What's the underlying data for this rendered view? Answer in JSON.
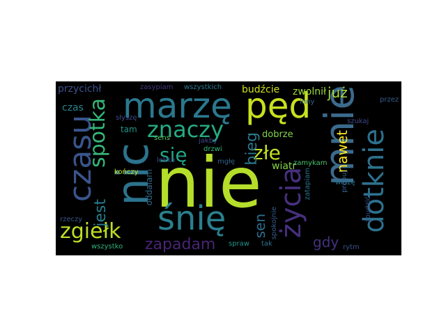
{
  "words": [
    {
      "key": "nie",
      "text": "nie",
      "color": "#b5de2b"
    },
    {
      "key": "mnie",
      "text": "mnie",
      "color": "#3b6a8c"
    },
    {
      "key": "nic",
      "text": "nic",
      "color": "#2c738e"
    },
    {
      "key": "marze",
      "text": "marzę",
      "color": "#2a788e"
    },
    {
      "key": "ped",
      "text": "pęd",
      "color": "#c8e020"
    },
    {
      "key": "snie",
      "text": "śnię",
      "color": "#2a7f8e"
    },
    {
      "key": "czasu",
      "text": "czasu",
      "color": "#3a548c"
    },
    {
      "key": "dotknie",
      "text": "dotknie",
      "color": "#2d718e"
    },
    {
      "key": "zycia",
      "text": "życia",
      "color": "#46307e"
    },
    {
      "key": "znaczy",
      "text": "znaczy",
      "color": "#25ab82"
    },
    {
      "key": "zgielk",
      "text": "zgiełk",
      "color": "#bddf26"
    },
    {
      "key": "spotka",
      "text": "spotka",
      "color": "#35b779"
    },
    {
      "key": "zapadam",
      "text": "zapadam",
      "color": "#482475"
    },
    {
      "key": "jest",
      "text": "jest",
      "color": "#287d8e"
    },
    {
      "key": "sie",
      "text": "się",
      "color": "#21a585"
    },
    {
      "key": "zle",
      "text": "złe",
      "color": "#c2df23"
    },
    {
      "key": "bieg",
      "text": "bieg",
      "color": "#2a788e"
    },
    {
      "key": "sen",
      "text": "sen",
      "color": "#2e6e8e"
    },
    {
      "key": "nawet",
      "text": "nawet",
      "color": "#fde725"
    },
    {
      "key": "juz",
      "text": "już",
      "color": "#a8db34"
    },
    {
      "key": "gdy",
      "text": "gdy",
      "color": "#46307e"
    },
    {
      "key": "przycichl",
      "text": "przycichł",
      "color": "#3b528b"
    },
    {
      "key": "budzcie",
      "text": "budźcie",
      "color": "#d0e11c"
    },
    {
      "key": "zwolnil",
      "text": "zwolnił",
      "color": "#9dd93b"
    },
    {
      "key": "czas",
      "text": "czas",
      "color": "#25848e"
    },
    {
      "key": "dobrze",
      "text": "dobrze",
      "color": "#84d44b"
    },
    {
      "key": "wiatr",
      "text": "wiatr",
      "color": "#86d549"
    },
    {
      "key": "tam",
      "text": "tam",
      "color": "#1f958b"
    },
    {
      "key": "oddalam",
      "text": "oddalam",
      "color": "#2e6e8e"
    },
    {
      "key": "zasypiam",
      "text": "zasypiam",
      "color": "#453781"
    },
    {
      "key": "wszystkich",
      "text": "wszystkich",
      "color": "#2a788e"
    },
    {
      "key": "przez",
      "text": "przez",
      "color": "#355f8d"
    },
    {
      "key": "slysze",
      "text": "słyszę",
      "color": "#3e4a89"
    },
    {
      "key": "szukaj",
      "text": "szukaj",
      "color": "#3e4989"
    },
    {
      "key": "sens",
      "text": "sens",
      "color": "#58c765"
    },
    {
      "key": "jakby",
      "text": "jakby",
      "color": "#3f4788"
    },
    {
      "key": "drzwi",
      "text": "drzwi",
      "color": "#35b779"
    },
    {
      "key": "inny",
      "text": "inny",
      "color": "#33638d"
    },
    {
      "key": "lekko",
      "text": "lekko",
      "color": "#3b528b"
    },
    {
      "key": "mgle",
      "text": "mgłę",
      "color": "#33638d"
    },
    {
      "key": "zamykam",
      "text": "zamykam",
      "color": "#4ac16d"
    },
    {
      "key": "konczy",
      "text": "kończy",
      "color": "#c8e020"
    },
    {
      "key": "probuj",
      "text": "probuj",
      "color": "#32648e"
    },
    {
      "key": "zatapiam",
      "text": "zatapiam",
      "color": "#2d708e"
    },
    {
      "key": "widze",
      "text": "widzę",
      "color": "#2c728e"
    },
    {
      "key": "rzeczy",
      "text": "rzeczy",
      "color": "#39568c"
    },
    {
      "key": "spokojnie",
      "text": "spokojnie",
      "color": "#355f8d"
    },
    {
      "key": "zbudzic",
      "text": "zbudzić",
      "color": "#3b528b"
    },
    {
      "key": "wszystko",
      "text": "wszystko",
      "color": "#2fb47c"
    },
    {
      "key": "spraw",
      "text": "spraw",
      "color": "#1f958b"
    },
    {
      "key": "tak",
      "text": "tak",
      "color": "#2c728e"
    },
    {
      "key": "rytm",
      "text": "rytm",
      "color": "#3b528b"
    }
  ]
}
